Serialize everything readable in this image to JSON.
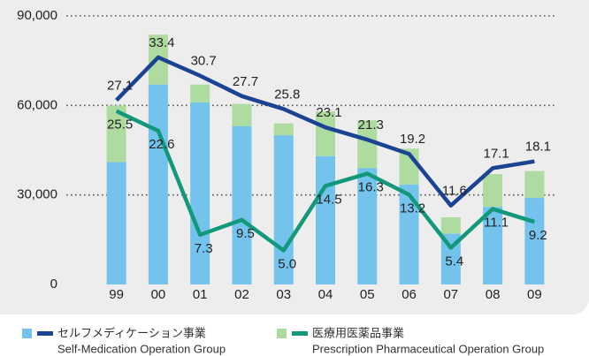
{
  "chart_data": {
    "type": "bar",
    "categories": [
      "99",
      "00",
      "01",
      "02",
      "03",
      "04",
      "05",
      "06",
      "07",
      "08",
      "09"
    ],
    "series": [
      {
        "name": "セルフメディケーション事業",
        "color": "#74c3ec",
        "values": [
          41000,
          67000,
          61000,
          53000,
          50000,
          43000,
          39000,
          33500,
          17000,
          26000,
          29000
        ]
      },
      {
        "name": "医療用医薬品事業",
        "color": "#aedb9f",
        "values": [
          19000,
          16700,
          6000,
          7500,
          4000,
          15000,
          16000,
          12000,
          5500,
          11000,
          9000
        ]
      },
      {
        "type": "line",
        "axis": "y2",
        "color": "#1b4394",
        "values": [
          27.1,
          33.4,
          30.7,
          27.7,
          25.8,
          23.1,
          21.3,
          19.2,
          11.6,
          17.1,
          18.1
        ],
        "value_labels": [
          "27.1",
          "33.4",
          "30.7",
          "27.7",
          "25.8",
          "23.1",
          "21.3",
          "19.2",
          "11.6",
          "17.1",
          "18.1"
        ]
      },
      {
        "type": "line",
        "axis": "y2",
        "color": "#12987a",
        "values": [
          25.5,
          22.6,
          7.3,
          9.5,
          5.0,
          14.5,
          16.3,
          13.2,
          5.4,
          11.1,
          9.2
        ],
        "value_labels": [
          "25.5",
          "22.6",
          "7.3",
          "9.5",
          "5.0",
          "14.5",
          "16.3",
          "13.2",
          "5.4",
          "11.1",
          "9.2"
        ]
      }
    ],
    "legend_subtitles": [
      "Self-Medication Operation Group",
      "Prescription Pharmaceutical Operation Group"
    ],
    "ylim": [
      0,
      90000
    ],
    "yticks": [
      {
        "value": 0,
        "label": "0"
      },
      {
        "value": 30000,
        "label": "30,000"
      },
      {
        "value": 60000,
        "label": "60,000"
      },
      {
        "value": 90000,
        "label": "90,000"
      }
    ],
    "y2lim": [
      0,
      39.5
    ],
    "grid": true,
    "stacked": true
  }
}
